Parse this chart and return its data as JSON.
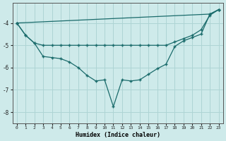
{
  "xlabel": "Humidex (Indice chaleur)",
  "background_color": "#ceeaea",
  "grid_color": "#aed4d4",
  "line_color": "#1a6b6b",
  "xlim": [
    -0.5,
    23.5
  ],
  "ylim": [
    -8.5,
    -3.1
  ],
  "xticks": [
    0,
    1,
    2,
    3,
    4,
    5,
    6,
    7,
    8,
    9,
    10,
    11,
    12,
    13,
    14,
    15,
    16,
    17,
    18,
    19,
    20,
    21,
    22,
    23
  ],
  "yticks": [
    -8,
    -7,
    -6,
    -5,
    -4
  ],
  "line1_x": [
    0,
    22,
    23
  ],
  "line1_y": [
    -4.0,
    -3.6,
    -3.4
  ],
  "line2_x": [
    0,
    1,
    2,
    3,
    4,
    5,
    6,
    7,
    8,
    9,
    10,
    11,
    12,
    13,
    14,
    15,
    16,
    17,
    18,
    19,
    20,
    21,
    22,
    23
  ],
  "line2_y": [
    -4.0,
    -4.55,
    -4.9,
    -5.0,
    -5.0,
    -5.0,
    -5.0,
    -5.0,
    -5.0,
    -5.0,
    -5.0,
    -5.0,
    -5.0,
    -5.0,
    -5.0,
    -5.0,
    -5.0,
    -5.0,
    -4.85,
    -4.7,
    -4.55,
    -4.3,
    -3.65,
    -3.4
  ],
  "line3_x": [
    0,
    1,
    2,
    3,
    4,
    5,
    6,
    7,
    8,
    9,
    10,
    11,
    12,
    13,
    14,
    15,
    16,
    17,
    18,
    19,
    20,
    21,
    22,
    23
  ],
  "line3_y": [
    -4.0,
    -4.55,
    -4.9,
    -5.5,
    -5.55,
    -5.6,
    -5.75,
    -6.0,
    -6.35,
    -6.6,
    -6.55,
    -7.75,
    -6.55,
    -6.6,
    -6.55,
    -6.3,
    -6.05,
    -5.85,
    -5.05,
    -4.8,
    -4.65,
    -4.5,
    -3.6,
    -3.4
  ]
}
